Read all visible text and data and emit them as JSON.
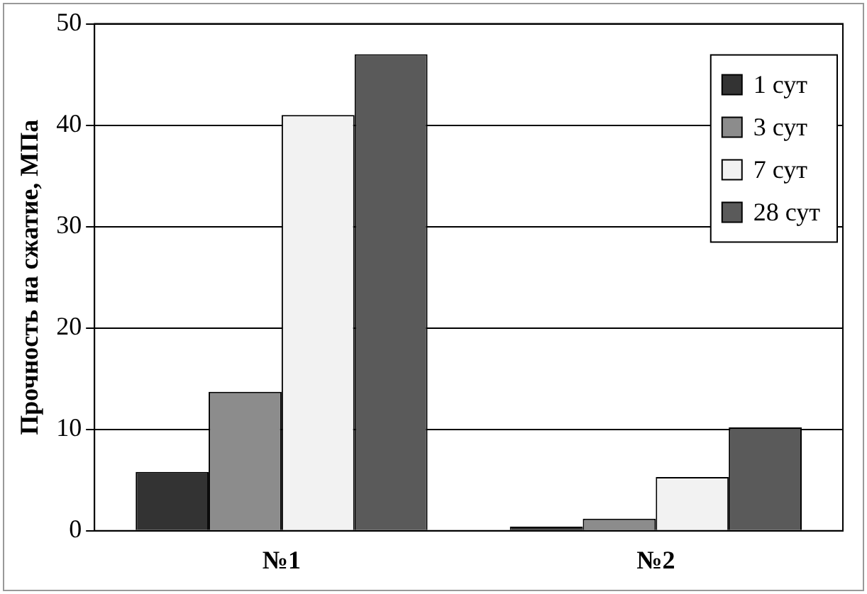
{
  "chart_data": {
    "type": "bar",
    "ylabel": "Прочность на сжатие, МПа",
    "categories": [
      "№1",
      "№2"
    ],
    "series": [
      {
        "name": "1 сут",
        "color": "#333333",
        "values": [
          5.8,
          0.4
        ]
      },
      {
        "name": "3 сут",
        "color": "#8c8c8c",
        "values": [
          13.7,
          1.2
        ]
      },
      {
        "name": "7 сут",
        "color": "#f2f2f2",
        "values": [
          41,
          5.3
        ]
      },
      {
        "name": "28 сут",
        "color": "#5a5a5a",
        "values": [
          47,
          10.2
        ]
      }
    ],
    "ylim": [
      0,
      50
    ],
    "yticks": [
      0,
      10,
      20,
      30,
      40,
      50
    ],
    "grid": "y",
    "legend": "top right"
  }
}
